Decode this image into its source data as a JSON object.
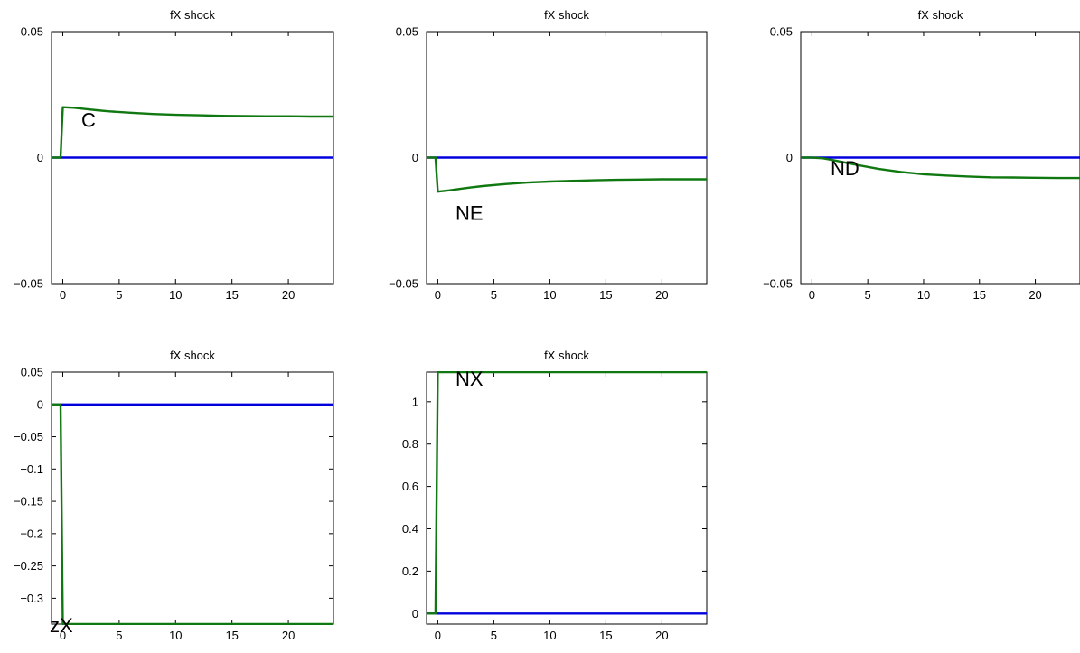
{
  "chart_data": [
    {
      "type": "line",
      "title": "fX shock",
      "label": "C",
      "xlim": [
        -1,
        24
      ],
      "ylim": [
        -0.05,
        0.05
      ],
      "xticks": [
        "0",
        "5",
        "10",
        "15",
        "20"
      ],
      "yticks": [
        "−0.05",
        "0",
        "0.05"
      ],
      "series": [
        {
          "color": "#0000dd",
          "x": [
            -1,
            24
          ],
          "y": [
            0,
            0
          ]
        },
        {
          "color": "#107810",
          "x": [
            -1,
            -0.2,
            0,
            1,
            2,
            3,
            4,
            6,
            8,
            10,
            12,
            14,
            16,
            18,
            20,
            22,
            24
          ],
          "y": [
            0,
            0,
            0.02,
            0.0198,
            0.0193,
            0.0188,
            0.0184,
            0.0178,
            0.0173,
            0.017,
            0.0168,
            0.0166,
            0.0165,
            0.0164,
            0.0164,
            0.0163,
            0.0163
          ]
        }
      ]
    },
    {
      "type": "line",
      "title": "fX shock",
      "label": "NE",
      "xlim": [
        -1,
        24
      ],
      "ylim": [
        -0.05,
        0.05
      ],
      "xticks": [
        "0",
        "5",
        "10",
        "15",
        "20"
      ],
      "yticks": [
        "−0.05",
        "0",
        "0.05"
      ],
      "series": [
        {
          "color": "#0000dd",
          "x": [
            -1,
            24
          ],
          "y": [
            0,
            0
          ]
        },
        {
          "color": "#107810",
          "x": [
            -1,
            -0.2,
            0,
            1,
            2,
            3,
            4,
            6,
            8,
            10,
            12,
            14,
            16,
            18,
            20,
            22,
            24
          ],
          "y": [
            0,
            0,
            -0.0135,
            -0.013,
            -0.0124,
            -0.0118,
            -0.0113,
            -0.0105,
            -0.0099,
            -0.0095,
            -0.0092,
            -0.009,
            -0.0088,
            -0.0087,
            -0.0086,
            -0.0086,
            -0.0086
          ]
        }
      ]
    },
    {
      "type": "line",
      "title": "fX shock",
      "label": "ND",
      "xlim": [
        -1,
        24
      ],
      "ylim": [
        -0.05,
        0.05
      ],
      "xticks": [
        "0",
        "5",
        "10",
        "15",
        "20"
      ],
      "yticks": [
        "−0.05",
        "0",
        "0.05"
      ],
      "series": [
        {
          "color": "#0000dd",
          "x": [
            -1,
            24
          ],
          "y": [
            0,
            0
          ]
        },
        {
          "color": "#107810",
          "x": [
            -1,
            -0.2,
            0,
            1,
            2,
            3,
            4,
            6,
            8,
            10,
            12,
            14,
            16,
            18,
            20,
            22,
            24
          ],
          "y": [
            0,
            0,
            0,
            -0.0003,
            -0.0011,
            -0.002,
            -0.0029,
            -0.0045,
            -0.0057,
            -0.0066,
            -0.0071,
            -0.0075,
            -0.0078,
            -0.0079,
            -0.008,
            -0.0081,
            -0.0081
          ]
        }
      ]
    },
    {
      "type": "line",
      "title": "fX shock",
      "label": "zX",
      "xlim": [
        -1,
        24
      ],
      "ylim": [
        -0.34,
        0.05
      ],
      "xticks": [
        "0",
        "5",
        "10",
        "15",
        "20"
      ],
      "yticks": [
        "−0.3",
        "−0.25",
        "−0.2",
        "−0.15",
        "−0.1",
        "−0.05",
        "0",
        "0.05"
      ],
      "series": [
        {
          "color": "#0000dd",
          "x": [
            -1,
            24
          ],
          "y": [
            0,
            0
          ]
        },
        {
          "color": "#107810",
          "x": [
            -1,
            -0.2,
            0,
            24
          ],
          "y": [
            0,
            0,
            -0.34,
            -0.34
          ]
        }
      ]
    },
    {
      "type": "line",
      "title": "fX shock",
      "label": "NX",
      "xlim": [
        -1,
        24
      ],
      "ylim": [
        -0.05,
        1.14
      ],
      "xticks": [
        "0",
        "5",
        "10",
        "15",
        "20"
      ],
      "yticks": [
        "0",
        "0.2",
        "0.4",
        "0.6",
        "0.8",
        "1"
      ],
      "series": [
        {
          "color": "#0000dd",
          "x": [
            -1,
            24
          ],
          "y": [
            0,
            0
          ]
        },
        {
          "color": "#107810",
          "x": [
            -1,
            -0.2,
            0,
            24
          ],
          "y": [
            0,
            0,
            1.14,
            1.14
          ]
        }
      ]
    }
  ]
}
